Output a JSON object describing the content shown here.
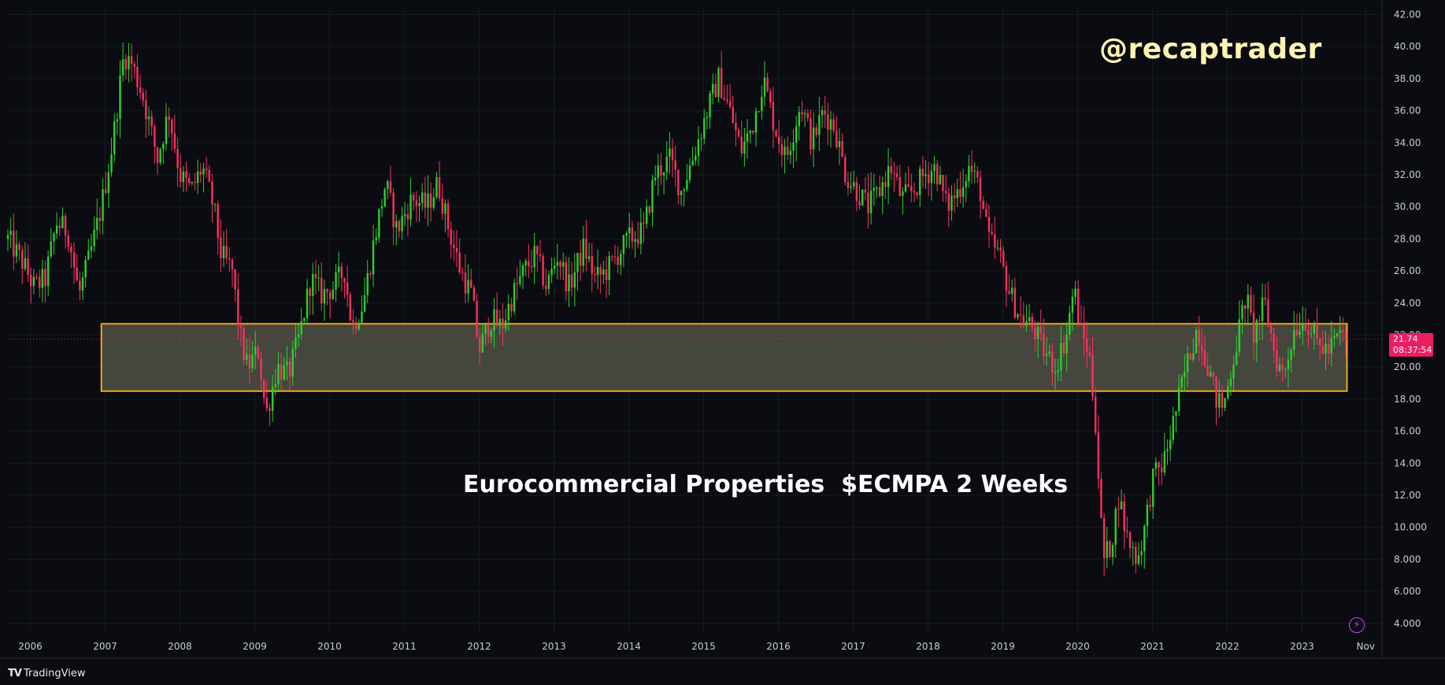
{
  "watermark": "@recaptrader",
  "title": "Eurocommercial Properties  $ECMPA 2 Weeks",
  "brand": "TradingView",
  "brand_logo": "TV",
  "flash_icon": "lightning-icon",
  "last_price": {
    "value": "21.74",
    "countdown": "08:37:54",
    "color": "#e91e63"
  },
  "colors": {
    "up": "#2ad12a",
    "down": "#ff2f5e",
    "zone_border": "#f0a81e",
    "zone_fill": "#5a5a4e"
  },
  "chart_data": {
    "type": "candlestick",
    "interval": "2 Weeks",
    "ylim": [
      4,
      42
    ],
    "y_ticks": [
      "4.000",
      "6.000",
      "8.000",
      "10.000",
      "12.00",
      "14.00",
      "16.00",
      "18.00",
      "20.00",
      "22.00",
      "24.00",
      "26.00",
      "28.00",
      "30.00",
      "32.00",
      "34.00",
      "36.00",
      "38.00",
      "40.00",
      "42.00"
    ],
    "x_ticks": [
      "2006",
      "2007",
      "2008",
      "2009",
      "2010",
      "2011",
      "2012",
      "2013",
      "2014",
      "2015",
      "2016",
      "2017",
      "2018",
      "2019",
      "2020",
      "2021",
      "2022",
      "2023",
      "Nov"
    ],
    "x_range": [
      2005.7,
      2023.95
    ],
    "support_zone": {
      "x0": 2006.95,
      "x1": 2023.6,
      "y0": 18.5,
      "y1": 22.7
    },
    "price_path": [
      [
        2005.7,
        28.0
      ],
      [
        2005.9,
        26.5
      ],
      [
        2006.05,
        25.0
      ],
      [
        2006.2,
        25.5
      ],
      [
        2006.35,
        29.0
      ],
      [
        2006.5,
        28.5
      ],
      [
        2006.65,
        24.5
      ],
      [
        2006.8,
        27.0
      ],
      [
        2006.95,
        30.0
      ],
      [
        2007.1,
        34.0
      ],
      [
        2007.25,
        39.5
      ],
      [
        2007.35,
        39.0
      ],
      [
        2007.5,
        37.0
      ],
      [
        2007.6,
        35.0
      ],
      [
        2007.7,
        33.0
      ],
      [
        2007.85,
        36.0
      ],
      [
        2008.0,
        32.0
      ],
      [
        2008.15,
        31.0
      ],
      [
        2008.3,
        32.5
      ],
      [
        2008.45,
        30.0
      ],
      [
        2008.55,
        27.0
      ],
      [
        2008.7,
        26.0
      ],
      [
        2008.8,
        22.0
      ],
      [
        2008.9,
        20.0
      ],
      [
        2009.05,
        21.0
      ],
      [
        2009.15,
        17.0
      ],
      [
        2009.3,
        20.0
      ],
      [
        2009.45,
        19.5
      ],
      [
        2009.6,
        22.0
      ],
      [
        2009.75,
        25.5
      ],
      [
        2009.9,
        24.5
      ],
      [
        2010.05,
        25.0
      ],
      [
        2010.2,
        26.0
      ],
      [
        2010.3,
        22.5
      ],
      [
        2010.45,
        24.0
      ],
      [
        2010.6,
        28.0
      ],
      [
        2010.75,
        31.5
      ],
      [
        2010.9,
        28.5
      ],
      [
        2011.1,
        30.5
      ],
      [
        2011.3,
        30.0
      ],
      [
        2011.45,
        31.5
      ],
      [
        2011.6,
        28.5
      ],
      [
        2011.75,
        26.0
      ],
      [
        2011.9,
        24.5
      ],
      [
        2012.0,
        21.0
      ],
      [
        2012.15,
        23.0
      ],
      [
        2012.3,
        22.5
      ],
      [
        2012.45,
        24.5
      ],
      [
        2012.6,
        26.0
      ],
      [
        2012.75,
        27.0
      ],
      [
        2012.9,
        25.0
      ],
      [
        2013.05,
        27.0
      ],
      [
        2013.2,
        25.0
      ],
      [
        2013.4,
        27.5
      ],
      [
        2013.55,
        25.5
      ],
      [
        2013.7,
        26.0
      ],
      [
        2013.85,
        27.0
      ],
      [
        2014.0,
        28.0
      ],
      [
        2014.2,
        28.5
      ],
      [
        2014.35,
        32.0
      ],
      [
        2014.55,
        33.0
      ],
      [
        2014.7,
        31.0
      ],
      [
        2014.85,
        33.0
      ],
      [
        2015.05,
        36.0
      ],
      [
        2015.2,
        38.0
      ],
      [
        2015.35,
        36.0
      ],
      [
        2015.5,
        33.5
      ],
      [
        2015.65,
        35.0
      ],
      [
        2015.8,
        38.0
      ],
      [
        2015.95,
        35.0
      ],
      [
        2016.1,
        33.0
      ],
      [
        2016.3,
        36.5
      ],
      [
        2016.45,
        34.0
      ],
      [
        2016.6,
        36.0
      ],
      [
        2016.75,
        35.0
      ],
      [
        2016.9,
        32.0
      ],
      [
        2017.05,
        31.0
      ],
      [
        2017.2,
        30.0
      ],
      [
        2017.35,
        31.0
      ],
      [
        2017.5,
        32.5
      ],
      [
        2017.65,
        30.5
      ],
      [
        2017.8,
        31.0
      ],
      [
        2017.95,
        32.0
      ],
      [
        2018.1,
        32.5
      ],
      [
        2018.25,
        30.0
      ],
      [
        2018.4,
        31.0
      ],
      [
        2018.55,
        32.5
      ],
      [
        2018.7,
        31.0
      ],
      [
        2018.8,
        28.0
      ],
      [
        2018.95,
        27.0
      ],
      [
        2019.1,
        24.5
      ],
      [
        2019.25,
        23.0
      ],
      [
        2019.4,
        22.5
      ],
      [
        2019.55,
        21.0
      ],
      [
        2019.7,
        20.0
      ],
      [
        2019.85,
        22.0
      ],
      [
        2019.95,
        25.0
      ],
      [
        2020.05,
        22.0
      ],
      [
        2020.15,
        21.0
      ],
      [
        2020.25,
        16.0
      ],
      [
        2020.3,
        11.0
      ],
      [
        2020.35,
        8.0
      ],
      [
        2020.45,
        9.0
      ],
      [
        2020.55,
        12.0
      ],
      [
        2020.65,
        9.5
      ],
      [
        2020.8,
        8.0
      ],
      [
        2020.9,
        10.0
      ],
      [
        2021.0,
        13.0
      ],
      [
        2021.15,
        14.0
      ],
      [
        2021.3,
        17.0
      ],
      [
        2021.45,
        20.0
      ],
      [
        2021.6,
        22.5
      ],
      [
        2021.75,
        20.0
      ],
      [
        2021.85,
        18.0
      ],
      [
        2021.95,
        17.5
      ],
      [
        2022.1,
        21.0
      ],
      [
        2022.25,
        24.5
      ],
      [
        2022.35,
        22.0
      ],
      [
        2022.5,
        24.0
      ],
      [
        2022.65,
        20.5
      ],
      [
        2022.75,
        19.5
      ],
      [
        2022.9,
        22.5
      ],
      [
        2023.05,
        23.0
      ],
      [
        2023.2,
        21.5
      ],
      [
        2023.35,
        21.0
      ],
      [
        2023.5,
        22.0
      ],
      [
        2023.6,
        21.74
      ]
    ]
  }
}
